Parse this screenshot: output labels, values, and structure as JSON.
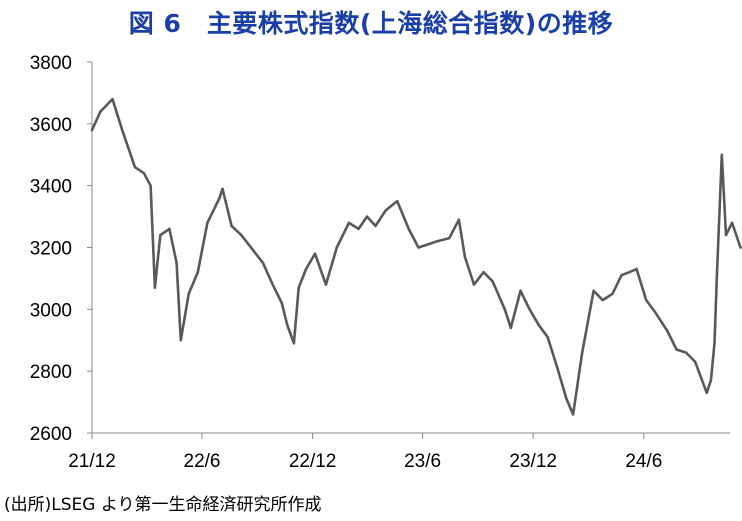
{
  "figure": {
    "title": "図 6　主要株式指数(上海総合指数)の推移",
    "source": "(出所)LSEG より第一生命経済研究所作成"
  },
  "chart_data": {
    "type": "line",
    "title": "図 6　主要株式指数(上海総合指数)の推移",
    "xlabel": "",
    "ylabel": "",
    "ylim": [
      2600,
      3800
    ],
    "yticks": [
      2600,
      2800,
      3000,
      3200,
      3400,
      3600,
      3800
    ],
    "x_range": [
      "2021-12",
      "2024-11"
    ],
    "xticks": [
      "21/12",
      "22/6",
      "22/12",
      "23/6",
      "23/12",
      "24/6"
    ],
    "grid": false,
    "legend": "none",
    "line_color": "#595959",
    "x": [
      "2021-12-01",
      "2021-12-15",
      "2022-01-04",
      "2022-01-20",
      "2022-02-10",
      "2022-02-25",
      "2022-03-08",
      "2022-03-15",
      "2022-03-24",
      "2022-04-08",
      "2022-04-20",
      "2022-04-27",
      "2022-05-10",
      "2022-05-25",
      "2022-06-10",
      "2022-06-30",
      "2022-07-05",
      "2022-07-20",
      "2022-08-05",
      "2022-08-25",
      "2022-09-10",
      "2022-09-26",
      "2022-10-11",
      "2022-10-20",
      "2022-10-31",
      "2022-11-08",
      "2022-11-20",
      "2022-12-05",
      "2022-12-23",
      "2023-01-10",
      "2023-01-30",
      "2023-02-15",
      "2023-03-01",
      "2023-03-15",
      "2023-04-01",
      "2023-04-20",
      "2023-05-09",
      "2023-05-25",
      "2023-06-10",
      "2023-06-25",
      "2023-07-15",
      "2023-07-31",
      "2023-08-10",
      "2023-08-25",
      "2023-09-10",
      "2023-09-25",
      "2023-10-15",
      "2023-10-25",
      "2023-11-10",
      "2023-11-25",
      "2023-12-10",
      "2023-12-25",
      "2024-01-10",
      "2024-01-25",
      "2024-02-05",
      "2024-02-20",
      "2024-03-10",
      "2024-03-25",
      "2024-04-10",
      "2024-04-25",
      "2024-05-20",
      "2024-06-05",
      "2024-06-20",
      "2024-07-10",
      "2024-07-25",
      "2024-08-10",
      "2024-08-25",
      "2024-09-13",
      "2024-09-20",
      "2024-09-26",
      "2024-09-30",
      "2024-10-08",
      "2024-10-15",
      "2024-10-25",
      "2024-11-08"
    ],
    "values": [
      3580,
      3640,
      3680,
      3580,
      3460,
      3440,
      3400,
      3070,
      3240,
      3260,
      3150,
      2900,
      3050,
      3120,
      3280,
      3360,
      3390,
      3270,
      3240,
      3190,
      3150,
      3080,
      3020,
      2950,
      2890,
      3070,
      3130,
      3180,
      3080,
      3200,
      3280,
      3260,
      3300,
      3270,
      3320,
      3350,
      3260,
      3200,
      3210,
      3220,
      3230,
      3290,
      3170,
      3080,
      3120,
      3090,
      3000,
      2940,
      3060,
      3000,
      2950,
      2910,
      2810,
      2710,
      2660,
      2860,
      3060,
      3030,
      3050,
      3110,
      3130,
      3030,
      2990,
      2930,
      2870,
      2860,
      2830,
      2730,
      2770,
      2890,
      3110,
      3500,
      3240,
      3280,
      3200
    ]
  }
}
